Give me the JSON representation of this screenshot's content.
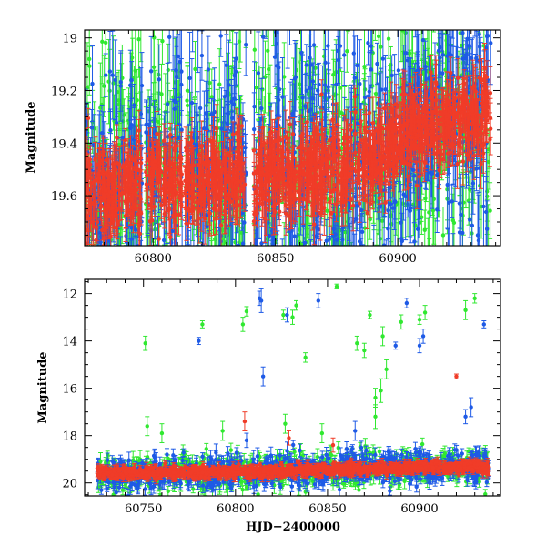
{
  "chart_data": [
    {
      "type": "scatter",
      "title": "",
      "xlabel": "",
      "ylabel": "Magnitude",
      "xlim": [
        60772,
        60942
      ],
      "ylim": [
        19.79,
        18.97
      ],
      "y_inverted": true,
      "x_ticks": [
        60800,
        60850,
        60900
      ],
      "y_ticks": [
        19,
        19.2,
        19.4,
        19.6
      ],
      "x_tick_labels": [
        "60800",
        "60850",
        "60900"
      ],
      "y_tick_labels": [
        "19",
        "19.2",
        "19.4",
        "19.6"
      ],
      "grid": false,
      "error_bars": true,
      "series": [
        {
          "color": "#30e830",
          "x_range": [
            60772,
            60938
          ],
          "typical_y": 19.5,
          "spread": 0.25,
          "error": 0.12
        },
        {
          "color": "#1e5ae6",
          "x_range": [
            60772,
            60938
          ],
          "typical_y": 19.5,
          "spread": 0.25,
          "error": 0.12
        },
        {
          "color": "#f03c28",
          "x_range": [
            60772,
            60938
          ],
          "typical_y": 19.5,
          "spread": 0.08,
          "error": 0.07
        }
      ],
      "trend_by_x": [
        [
          60772,
          19.58
        ],
        [
          60800,
          19.55
        ],
        [
          60820,
          19.55
        ],
        [
          60850,
          19.52
        ],
        [
          60880,
          19.48
        ],
        [
          60895,
          19.45
        ],
        [
          60905,
          19.35
        ],
        [
          60920,
          19.32
        ],
        [
          60938,
          19.3
        ]
      ],
      "gaps": [
        [
          60795.5,
          60797
        ],
        [
          60812,
          60813
        ],
        [
          60838,
          60841
        ]
      ]
    },
    {
      "type": "scatter",
      "title": "",
      "xlabel": "HJD−2400000",
      "ylabel": "Magnitude",
      "xlim": [
        60718,
        60944
      ],
      "ylim": [
        20.55,
        11.4
      ],
      "y_inverted": true,
      "x_ticks": [
        60750,
        60800,
        60850,
        60900
      ],
      "y_ticks": [
        12,
        14,
        16,
        18,
        20
      ],
      "x_tick_labels": [
        "60750",
        "60800",
        "60850",
        "60900"
      ],
      "y_tick_labels": [
        "12",
        "14",
        "16",
        "18",
        "20"
      ],
      "grid": false,
      "error_bars": true,
      "series": [
        {
          "color": "#30e830",
          "x_range": [
            60725,
            60938
          ],
          "typical_y": 19.5,
          "spread": 0.35,
          "error": 0.25
        },
        {
          "color": "#1e5ae6",
          "x_range": [
            60725,
            60938
          ],
          "typical_y": 19.5,
          "spread": 0.35,
          "error": 0.25
        },
        {
          "color": "#f03c28",
          "x_range": [
            60725,
            60938
          ],
          "typical_y": 19.5,
          "spread": 0.12,
          "error": 0.12
        }
      ],
      "trend_by_x": [
        [
          60725,
          19.6
        ],
        [
          60800,
          19.55
        ],
        [
          60850,
          19.45
        ],
        [
          60900,
          19.35
        ],
        [
          60938,
          19.3
        ]
      ],
      "outliers": [
        {
          "color": "#30e830",
          "points": [
            [
              60751,
              14.1,
              0.3
            ],
            [
              60782,
              13.3,
              0.15
            ],
            [
              60804,
              13.3,
              0.3
            ],
            [
              60806,
              12.75,
              0.2
            ],
            [
              60826,
              12.9,
              0.2
            ],
            [
              60831,
              13.0,
              0.3
            ],
            [
              60833,
              12.5,
              0.2
            ],
            [
              60838,
              14.7,
              0.2
            ],
            [
              60855,
              11.7,
              0.1
            ],
            [
              60866,
              14.1,
              0.3
            ],
            [
              60870,
              14.4,
              0.3
            ],
            [
              60873,
              12.9,
              0.15
            ],
            [
              60880,
              13.8,
              0.4
            ],
            [
              60890,
              13.2,
              0.3
            ],
            [
              60900,
              13.1,
              0.2
            ],
            [
              60903,
              12.8,
              0.3
            ],
            [
              60925,
              12.7,
              0.4
            ],
            [
              60930,
              12.2,
              0.2
            ],
            [
              60876,
              16.4,
              0.4
            ],
            [
              60879,
              16.1,
              0.5
            ],
            [
              60882,
              15.2,
              0.4
            ],
            [
              60876,
              17.2,
              0.5
            ],
            [
              60752,
              17.6,
              0.4
            ],
            [
              60760,
              17.9,
              0.4
            ],
            [
              60793,
              17.8,
              0.4
            ],
            [
              60827,
              17.5,
              0.4
            ],
            [
              60847,
              17.9,
              0.4
            ]
          ]
        },
        {
          "color": "#1e5ae6",
          "points": [
            [
              60780,
              14.0,
              0.15
            ],
            [
              60813,
              12.2,
              0.3
            ],
            [
              60814,
              12.3,
              0.5
            ],
            [
              60815,
              15.5,
              0.4
            ],
            [
              60828,
              12.9,
              0.3
            ],
            [
              60845,
              12.3,
              0.3
            ],
            [
              60887,
              14.2,
              0.15
            ],
            [
              60893,
              12.4,
              0.2
            ],
            [
              60900,
              14.2,
              0.3
            ],
            [
              60902,
              13.8,
              0.3
            ],
            [
              60935,
              13.3,
              0.15
            ],
            [
              60925,
              17.2,
              0.3
            ],
            [
              60928,
              16.8,
              0.4
            ],
            [
              60865,
              17.8,
              0.4
            ],
            [
              60806,
              18.2,
              0.3
            ]
          ]
        },
        {
          "color": "#f03c28",
          "points": [
            [
              60920,
              15.5,
              0.1
            ],
            [
              60805,
              17.4,
              0.4
            ],
            [
              60853,
              18.4,
              0.3
            ],
            [
              60829,
              18.1,
              0.3
            ]
          ]
        }
      ]
    }
  ]
}
